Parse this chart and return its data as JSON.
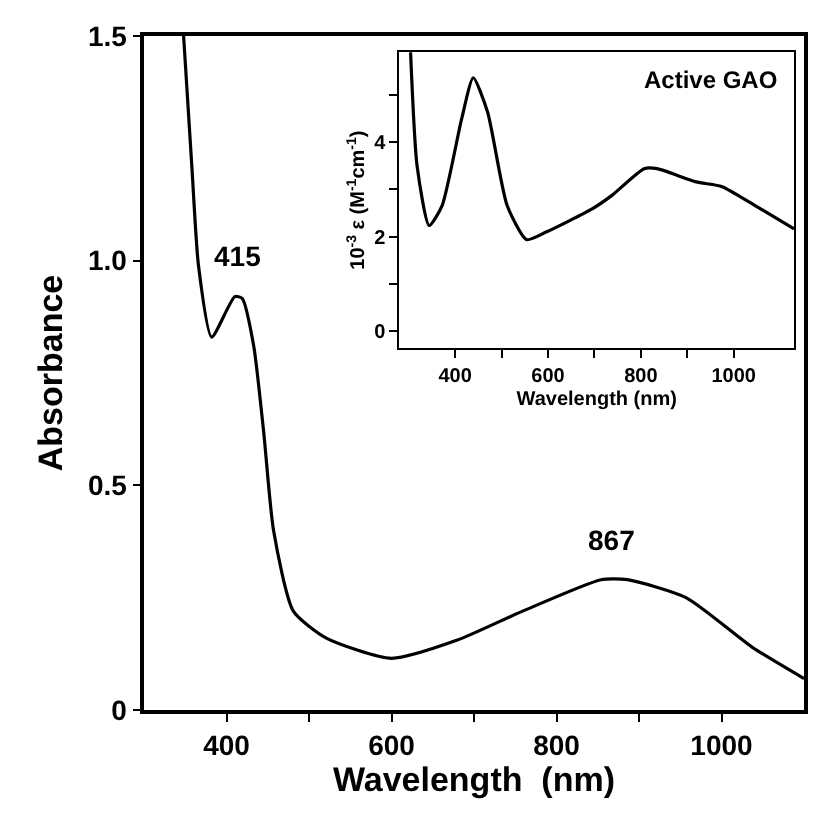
{
  "chart_data": [
    {
      "type": "line",
      "xlabel": "Wavelength  (nm)",
      "ylabel": "Absorbance",
      "xlim": [
        300,
        1100
      ],
      "ylim": [
        0,
        1.5
      ],
      "xticks": [
        400,
        {
          "value": 500,
          "label": null
        },
        600,
        {
          "value": 700,
          "label": null
        },
        800,
        {
          "value": 900,
          "label": null
        },
        1000
      ],
      "yticks": [
        0,
        0.5,
        {
          "value": 1,
          "label": "1.0"
        },
        1.5
      ],
      "series": [
        {
          "color": "#000000",
          "x": [
            348,
            358,
            366,
            382,
            410,
            419,
            433,
            445,
            457,
            481,
            521,
            600,
            679,
            759,
            854,
            886,
            957,
            1037,
            1100
          ],
          "values": [
            1.5,
            1.21,
            0.99,
            0.83,
            0.92,
            0.916,
            0.81,
            0.62,
            0.4,
            0.22,
            0.16,
            0.115,
            0.155,
            0.22,
            0.29,
            0.29,
            0.25,
            0.14,
            0.07
          ]
        }
      ],
      "annotations": [
        {
          "text": "415",
          "x": 415,
          "y": 0.92
        },
        {
          "text": "867",
          "x": 867,
          "y": 0.29
        }
      ]
    },
    {
      "type": "line",
      "title": "Active GAO",
      "xlabel": "Wavelength (nm)",
      "ylabel": "10$^{-3}$ ε (M$^{-1}$cm$^{-1}$)",
      "xlim": [
        280,
        1130
      ],
      "ylim": [
        -0.35,
        5.9
      ],
      "xticks": [
        400,
        {
          "value": 500,
          "label": null
        },
        600,
        {
          "value": 700,
          "label": null
        },
        800,
        {
          "value": 900,
          "label": null
        },
        1000
      ],
      "yticks": [
        0,
        {
          "value": 1,
          "label": null
        },
        2,
        {
          "value": 3,
          "label": null
        },
        4,
        {
          "value": 5,
          "label": null
        }
      ],
      "series": [
        {
          "color": "#000000",
          "x": [
            304,
            318,
            344,
            372,
            414,
            439,
            470,
            512,
            554,
            596,
            695,
            737,
            807,
            835,
            919,
            975,
            1046,
            1130
          ],
          "values": [
            5.9,
            3.5,
            2.24,
            2.66,
            4.49,
            5.36,
            4.63,
            2.66,
            1.94,
            2.1,
            2.59,
            2.87,
            3.44,
            3.44,
            3.16,
            3.06,
            2.66,
            2.17
          ]
        }
      ]
    }
  ]
}
